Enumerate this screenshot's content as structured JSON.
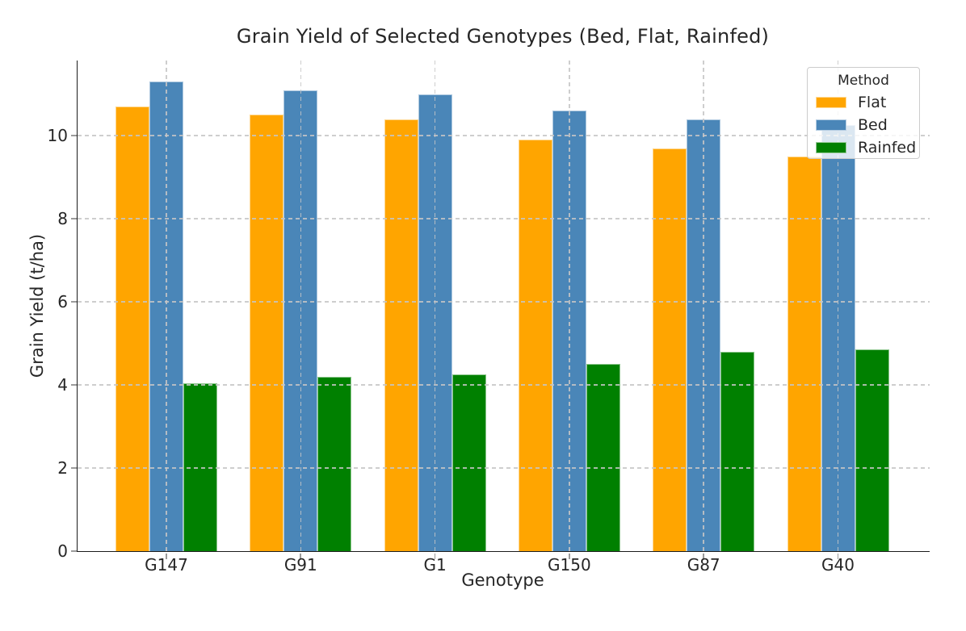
{
  "chart_data": {
    "type": "bar",
    "title": "Grain Yield of Selected Genotypes (Bed, Flat, Rainfed)",
    "xlabel": "Genotype",
    "ylabel": "Grain Yield (t/ha)",
    "categories": [
      "G147",
      "G91",
      "G1",
      "G150",
      "G87",
      "G40"
    ],
    "series": [
      {
        "name": "Flat",
        "color": "#ffa500",
        "values": [
          10.7,
          10.5,
          10.4,
          9.9,
          9.7,
          9.5
        ]
      },
      {
        "name": "Bed",
        "color": "#4a86b8",
        "values": [
          11.3,
          11.1,
          11.0,
          10.6,
          10.4,
          10.25
        ]
      },
      {
        "name": "Rainfed",
        "color": "#008000",
        "values": [
          4.05,
          4.2,
          4.25,
          4.5,
          4.8,
          4.85
        ]
      }
    ],
    "yticks": [
      0,
      2,
      4,
      6,
      8,
      10
    ],
    "ylim": [
      0,
      11.81
    ],
    "grid": true,
    "legend": {
      "title": "Method",
      "position": "upper-right",
      "entries": [
        "Flat",
        "Bed",
        "Rainfed"
      ]
    }
  },
  "colors": {
    "flat": "#ffa500",
    "bed": "#4a86b8",
    "rainfed": "#008000",
    "grid": "#c6c6c6",
    "axis": "#1c1c1c",
    "text": "#262626"
  }
}
